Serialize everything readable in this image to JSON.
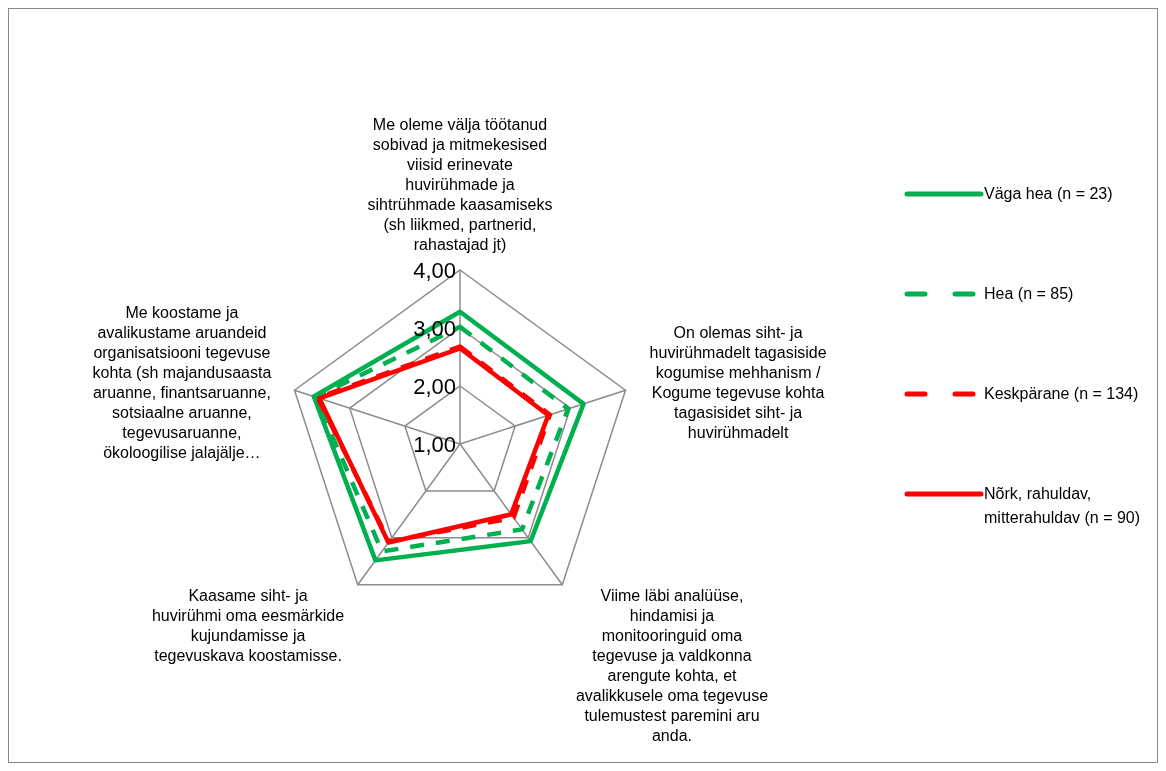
{
  "chart_data": {
    "type": "radar",
    "categories": [
      "Me oleme välja töötanud sobivad ja mitmekesised viisid erinevate huvirühmade ja sihtrühmade kaasamiseks (sh liikmed, partnerid, rahastajad jt)",
      "On olemas siht- ja huvirühmadelt tagasiside kogumise mehhanism / Kogume tegevuse kohta tagasisidet siht- ja huvirühmadelt",
      "Viime läbi analüüse, hindamisi ja monitooringuid oma tegevuse ja valdkonna arengute kohta, et avalikkusele oma tegevuse tulemustest paremini aru anda.",
      "Kaasame siht- ja huvirühmi oma eesmärkide kujundamisse ja tegevuskava koostamisse.",
      "Me koostame ja avalikustame aruandeid organisatsiooni tegevuse kohta (sh majandusaasta aruanne, finantsaruanne, sotsiaalne aruanne, tegevusaruanne, ökoloogilise jalajälje…"
    ],
    "ylim": [
      1,
      4
    ],
    "yticks": [
      {
        "value": 1,
        "label": "1,00"
      },
      {
        "value": 2,
        "label": "2,00"
      },
      {
        "value": 3,
        "label": "3,00"
      },
      {
        "value": 4,
        "label": "4,00"
      }
    ],
    "legend": "right",
    "grid": true,
    "series": [
      {
        "name": "Väga hea (n = 23)",
        "color": "#00b050",
        "line_style": "solid",
        "values": [
          3.28,
          3.24,
          3.07,
          3.48,
          3.65
        ]
      },
      {
        "name": "Hea (n = 85)",
        "color": "#00b050",
        "line_style": "dashed",
        "values": [
          3.02,
          2.96,
          2.82,
          3.29,
          3.62
        ]
      },
      {
        "name": "Keskpärane (n = 134)",
        "color": "#ff0000",
        "line_style": "dashed",
        "values": [
          2.68,
          2.63,
          2.57,
          3.08,
          3.58
        ]
      },
      {
        "name": "Nõrk, rahuldav, mitterahuldav (n = 90)",
        "color": "#ff0000",
        "line_style": "solid",
        "values": [
          2.65,
          2.6,
          2.5,
          3.1,
          3.55
        ]
      }
    ]
  }
}
